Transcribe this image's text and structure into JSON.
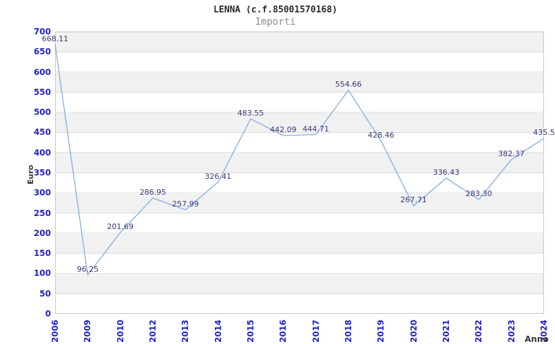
{
  "chart_data": {
    "type": "line",
    "title": "LENNA (c.f.85001570168)",
    "subtitle": "Importi",
    "xlabel": "Anno",
    "ylabel": "Euro",
    "categories": [
      "2006",
      "2009",
      "2010",
      "2012",
      "2013",
      "2014",
      "2015",
      "2016",
      "2017",
      "2018",
      "2019",
      "2020",
      "2021",
      "2022",
      "2023",
      "2024"
    ],
    "values": [
      668.11,
      96.25,
      201.69,
      286.95,
      257.99,
      326.41,
      483.55,
      442.09,
      444.71,
      554.66,
      428.46,
      267.71,
      336.43,
      283.3,
      382.37,
      435.5
    ],
    "point_labels": [
      "668.11",
      "96.25",
      "201.69",
      "286.95",
      "257.99",
      "326.41",
      "483.55",
      "442.09",
      "444.71",
      "554.66",
      "428.46",
      "267.71",
      "336.43",
      "283.30",
      "382.37",
      "435.5"
    ],
    "ylim": [
      0,
      700
    ],
    "ytick_step": 50,
    "grid": "horizontal-bands-and-lines",
    "legend": "none",
    "colors": {
      "line": "#7fade0",
      "axis_tick_label": "#2323cd",
      "point_label": "#383878",
      "band": "#f1f1f1",
      "grid_line": "#dcdcdc",
      "plot_border": "#c9c9c9",
      "title": "#2b2b2b",
      "subtitle": "#8f8f8f",
      "axis_title": "#333333"
    }
  }
}
